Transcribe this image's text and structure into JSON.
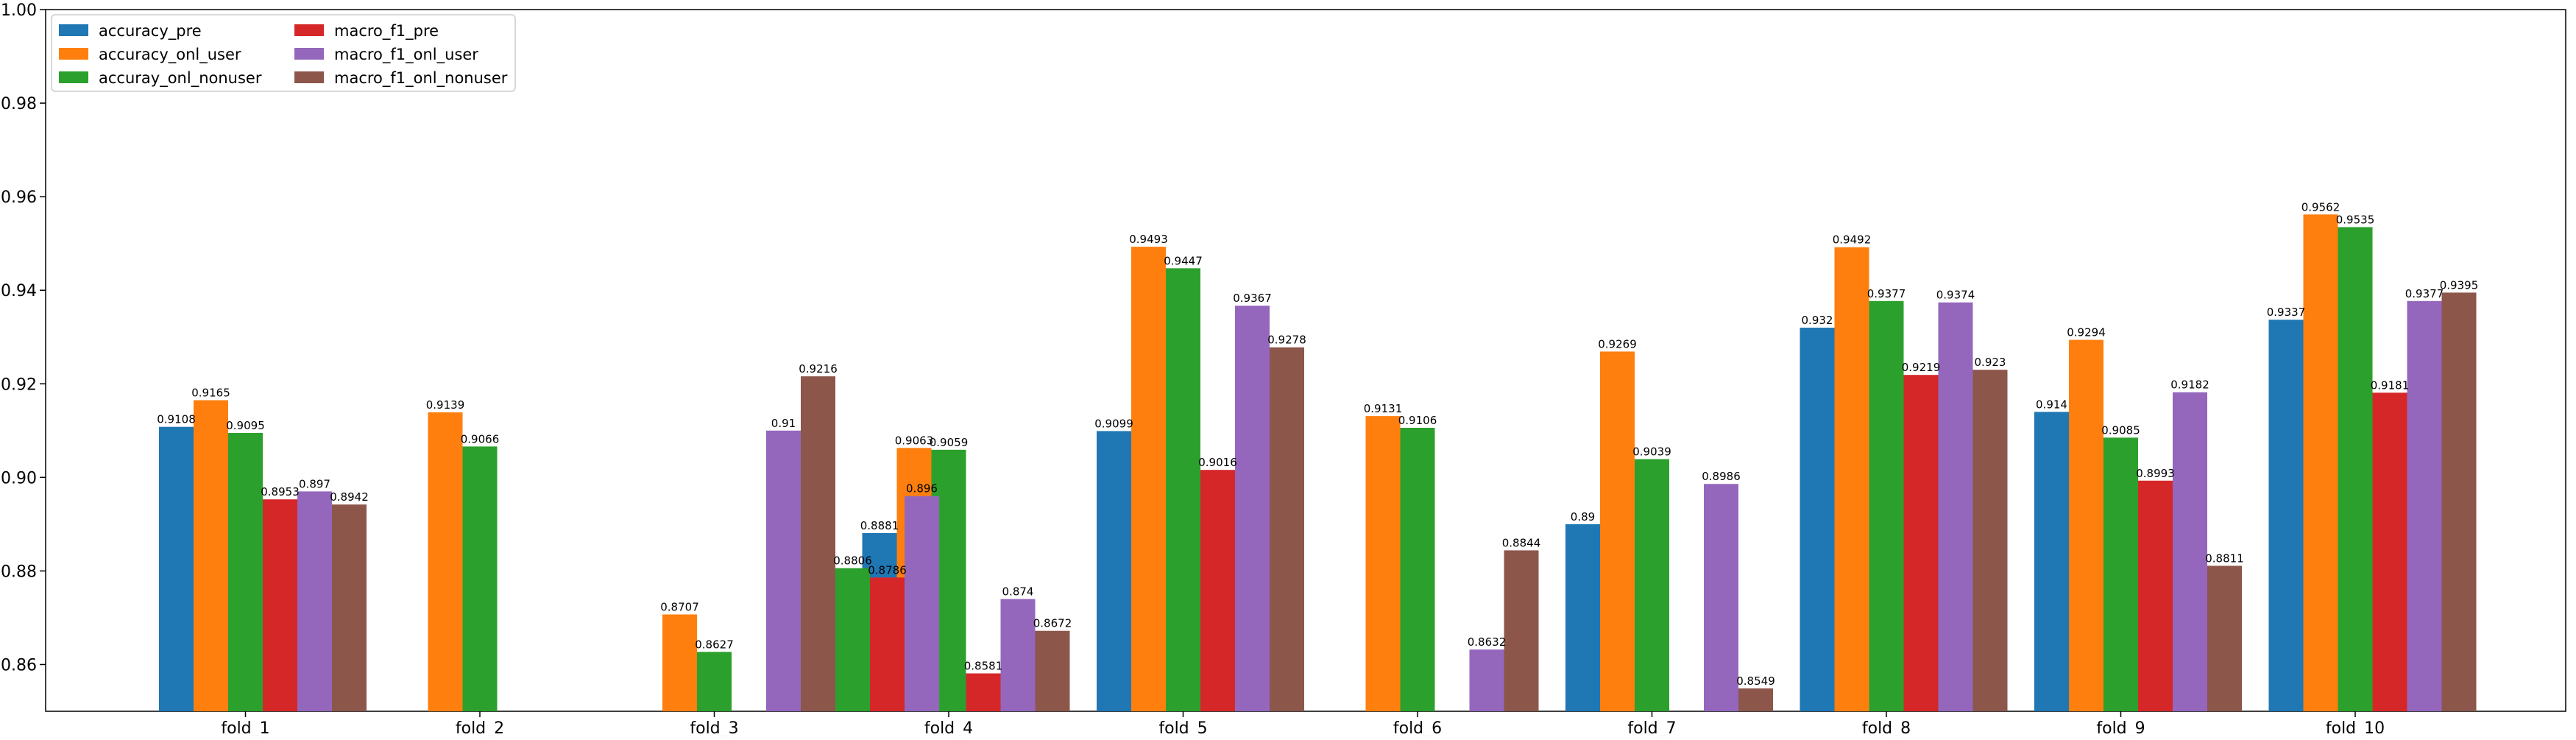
{
  "chart_data": {
    "type": "bar",
    "title": "",
    "xlabel": "",
    "ylabel": "",
    "ylim": [
      0.85,
      1.0
    ],
    "yticks": [
      0.86,
      0.88,
      0.9,
      0.92,
      0.94,
      0.96,
      0.98,
      1.0
    ],
    "ytick_labels": [
      "0.86",
      "0.88",
      "0.90",
      "0.92",
      "0.94",
      "0.96",
      "0.98",
      "1.00"
    ],
    "grid": false,
    "legend_position": "top-left",
    "categories": [
      "fold_1",
      "fold_2",
      "fold_3",
      "fold_4",
      "fold_5",
      "fold_6",
      "fold_7",
      "fold_8",
      "fold_9",
      "fold_10"
    ],
    "series": [
      {
        "name": "accuracy_pre",
        "color": "#1f77b4",
        "values": [
          0.9108,
          null,
          null,
          0.8881,
          0.9099,
          null,
          0.89,
          0.932,
          0.914,
          0.9337
        ],
        "labels": [
          "0.9108",
          "",
          "",
          "0.8881",
          "0.9099",
          "",
          "0.89",
          "0.932",
          "0.914",
          "0.9337"
        ]
      },
      {
        "name": "accuracy_onl_user",
        "color": "#ff7f0e",
        "values": [
          0.9165,
          0.9139,
          0.8707,
          0.9063,
          0.9493,
          0.9131,
          0.9269,
          0.9492,
          0.9294,
          0.9562
        ],
        "labels": [
          "0.9165",
          "0.9139",
          "0.8707",
          "0.9063",
          "0.9493",
          "0.9131",
          "0.9269",
          "0.9492",
          "0.9294",
          "0.9562"
        ]
      },
      {
        "name": "accuray_onl_nonuser",
        "color": "#2ca02c",
        "values": [
          0.9095,
          0.9066,
          0.8627,
          0.9059,
          0.9447,
          0.9106,
          0.9039,
          0.9377,
          0.9085,
          0.9535
        ],
        "labels": [
          "0.9095",
          "0.9066",
          "0.8627",
          "0.9059",
          "0.9447",
          "0.9106",
          "0.9039",
          "0.9377",
          "0.9085",
          "0.9535"
        ]
      },
      {
        "name": "macro_f1_pre",
        "color": "#d62728",
        "values": [
          0.8953,
          null,
          null,
          0.8581,
          0.9016,
          null,
          null,
          0.9219,
          0.8993,
          0.9181
        ],
        "labels": [
          "0.8953",
          "",
          "",
          "0.8581",
          "0.9016",
          "",
          "",
          "0.9219",
          "0.8993",
          "0.9181"
        ]
      },
      {
        "name": "macro_f1_onl_user",
        "color": "#9467bd",
        "values": [
          0.897,
          null,
          0.91,
          0.874,
          0.9367,
          0.8632,
          0.8986,
          0.9374,
          0.9182,
          0.9377
        ],
        "labels": [
          "0.897",
          "",
          "0.91",
          "0.874",
          "0.9367",
          "0.8632",
          "0.8986",
          "0.9374",
          "0.9182",
          "0.9377"
        ]
      },
      {
        "name": "macro_f1_onl_nonuser",
        "color": "#8c564b",
        "values": [
          0.8942,
          null,
          0.9216,
          0.8672,
          0.9278,
          0.8844,
          0.8549,
          0.923,
          0.8811,
          0.9395
        ],
        "labels": [
          "0.8942",
          "",
          "0.9216",
          "0.8672",
          "0.9278",
          "0.8844",
          "0.8549",
          "0.923",
          "0.8811",
          "0.9395"
        ]
      }
    ],
    "extra_bars": [
      {
        "category": "fold_3",
        "slot": 6,
        "color": "#2ca02c",
        "value": 0.8806,
        "label": "0.8806"
      },
      {
        "category": "fold_3",
        "slot": 7,
        "color": "#d62728",
        "value": 0.8786,
        "label": "0.8786"
      },
      {
        "category": "fold_3",
        "slot": 8,
        "color": "#9467bd",
        "value": 0.896,
        "label": "0.896"
      }
    ]
  }
}
